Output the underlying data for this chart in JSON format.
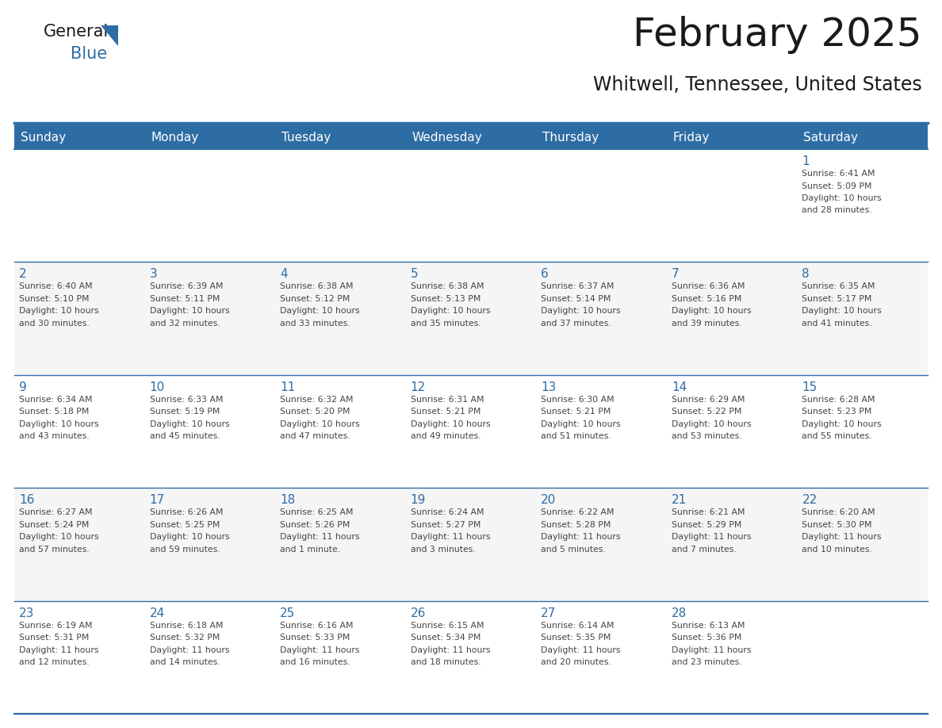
{
  "title": "February 2025",
  "subtitle": "Whitwell, Tennessee, United States",
  "header_bg": "#2E6DA4",
  "header_text_color": "#FFFFFF",
  "cell_bg": "#FFFFFF",
  "cell_bg_alt": "#F5F5F5",
  "day_number_color": "#2E6DA4",
  "info_text_color": "#444444",
  "border_color": "#2E6DA4",
  "title_color": "#1a1a1a",
  "subtitle_color": "#1a1a1a",
  "days_of_week": [
    "Sunday",
    "Monday",
    "Tuesday",
    "Wednesday",
    "Thursday",
    "Friday",
    "Saturday"
  ],
  "weeks": [
    [
      {
        "day": null,
        "info": ""
      },
      {
        "day": null,
        "info": ""
      },
      {
        "day": null,
        "info": ""
      },
      {
        "day": null,
        "info": ""
      },
      {
        "day": null,
        "info": ""
      },
      {
        "day": null,
        "info": ""
      },
      {
        "day": 1,
        "info": "Sunrise: 6:41 AM\nSunset: 5:09 PM\nDaylight: 10 hours\nand 28 minutes."
      }
    ],
    [
      {
        "day": 2,
        "info": "Sunrise: 6:40 AM\nSunset: 5:10 PM\nDaylight: 10 hours\nand 30 minutes."
      },
      {
        "day": 3,
        "info": "Sunrise: 6:39 AM\nSunset: 5:11 PM\nDaylight: 10 hours\nand 32 minutes."
      },
      {
        "day": 4,
        "info": "Sunrise: 6:38 AM\nSunset: 5:12 PM\nDaylight: 10 hours\nand 33 minutes."
      },
      {
        "day": 5,
        "info": "Sunrise: 6:38 AM\nSunset: 5:13 PM\nDaylight: 10 hours\nand 35 minutes."
      },
      {
        "day": 6,
        "info": "Sunrise: 6:37 AM\nSunset: 5:14 PM\nDaylight: 10 hours\nand 37 minutes."
      },
      {
        "day": 7,
        "info": "Sunrise: 6:36 AM\nSunset: 5:16 PM\nDaylight: 10 hours\nand 39 minutes."
      },
      {
        "day": 8,
        "info": "Sunrise: 6:35 AM\nSunset: 5:17 PM\nDaylight: 10 hours\nand 41 minutes."
      }
    ],
    [
      {
        "day": 9,
        "info": "Sunrise: 6:34 AM\nSunset: 5:18 PM\nDaylight: 10 hours\nand 43 minutes."
      },
      {
        "day": 10,
        "info": "Sunrise: 6:33 AM\nSunset: 5:19 PM\nDaylight: 10 hours\nand 45 minutes."
      },
      {
        "day": 11,
        "info": "Sunrise: 6:32 AM\nSunset: 5:20 PM\nDaylight: 10 hours\nand 47 minutes."
      },
      {
        "day": 12,
        "info": "Sunrise: 6:31 AM\nSunset: 5:21 PM\nDaylight: 10 hours\nand 49 minutes."
      },
      {
        "day": 13,
        "info": "Sunrise: 6:30 AM\nSunset: 5:21 PM\nDaylight: 10 hours\nand 51 minutes."
      },
      {
        "day": 14,
        "info": "Sunrise: 6:29 AM\nSunset: 5:22 PM\nDaylight: 10 hours\nand 53 minutes."
      },
      {
        "day": 15,
        "info": "Sunrise: 6:28 AM\nSunset: 5:23 PM\nDaylight: 10 hours\nand 55 minutes."
      }
    ],
    [
      {
        "day": 16,
        "info": "Sunrise: 6:27 AM\nSunset: 5:24 PM\nDaylight: 10 hours\nand 57 minutes."
      },
      {
        "day": 17,
        "info": "Sunrise: 6:26 AM\nSunset: 5:25 PM\nDaylight: 10 hours\nand 59 minutes."
      },
      {
        "day": 18,
        "info": "Sunrise: 6:25 AM\nSunset: 5:26 PM\nDaylight: 11 hours\nand 1 minute."
      },
      {
        "day": 19,
        "info": "Sunrise: 6:24 AM\nSunset: 5:27 PM\nDaylight: 11 hours\nand 3 minutes."
      },
      {
        "day": 20,
        "info": "Sunrise: 6:22 AM\nSunset: 5:28 PM\nDaylight: 11 hours\nand 5 minutes."
      },
      {
        "day": 21,
        "info": "Sunrise: 6:21 AM\nSunset: 5:29 PM\nDaylight: 11 hours\nand 7 minutes."
      },
      {
        "day": 22,
        "info": "Sunrise: 6:20 AM\nSunset: 5:30 PM\nDaylight: 11 hours\nand 10 minutes."
      }
    ],
    [
      {
        "day": 23,
        "info": "Sunrise: 6:19 AM\nSunset: 5:31 PM\nDaylight: 11 hours\nand 12 minutes."
      },
      {
        "day": 24,
        "info": "Sunrise: 6:18 AM\nSunset: 5:32 PM\nDaylight: 11 hours\nand 14 minutes."
      },
      {
        "day": 25,
        "info": "Sunrise: 6:16 AM\nSunset: 5:33 PM\nDaylight: 11 hours\nand 16 minutes."
      },
      {
        "day": 26,
        "info": "Sunrise: 6:15 AM\nSunset: 5:34 PM\nDaylight: 11 hours\nand 18 minutes."
      },
      {
        "day": 27,
        "info": "Sunrise: 6:14 AM\nSunset: 5:35 PM\nDaylight: 11 hours\nand 20 minutes."
      },
      {
        "day": 28,
        "info": "Sunrise: 6:13 AM\nSunset: 5:36 PM\nDaylight: 11 hours\nand 23 minutes."
      },
      {
        "day": null,
        "info": ""
      }
    ]
  ],
  "fig_width": 11.88,
  "fig_height": 9.18,
  "dpi": 100
}
